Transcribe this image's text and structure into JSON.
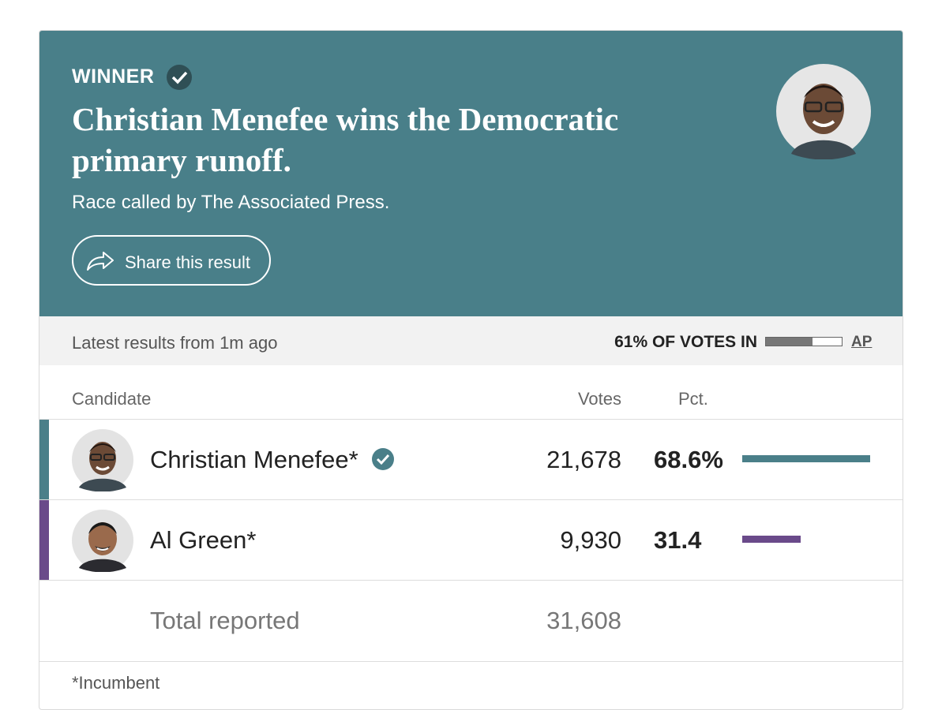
{
  "header": {
    "label": "WINNER",
    "headline": "Christian Menefee wins the Democratic primary runoff.",
    "subtitle": "Race called by The Associated Press.",
    "share_button": "Share this result"
  },
  "status": {
    "latest": "Latest results from 1m ago",
    "reporting_pct": 61,
    "reporting_label": "61% OF VOTES IN",
    "source": "AP"
  },
  "table": {
    "columns": [
      "Candidate",
      "Votes",
      "Pct."
    ],
    "rows": [
      {
        "name": "Christian Menefee*",
        "votes": "21,678",
        "pct": 68.6,
        "pct_label": "68.6%",
        "color": "#4a7f89",
        "winner": true
      },
      {
        "name": "Al Green*",
        "votes": "9,930",
        "pct": 31.4,
        "color": "#6a4a8a"
      }
    ],
    "total_label": "Total reported",
    "total_votes": "31,608"
  },
  "footnote": "*Incumbent"
}
